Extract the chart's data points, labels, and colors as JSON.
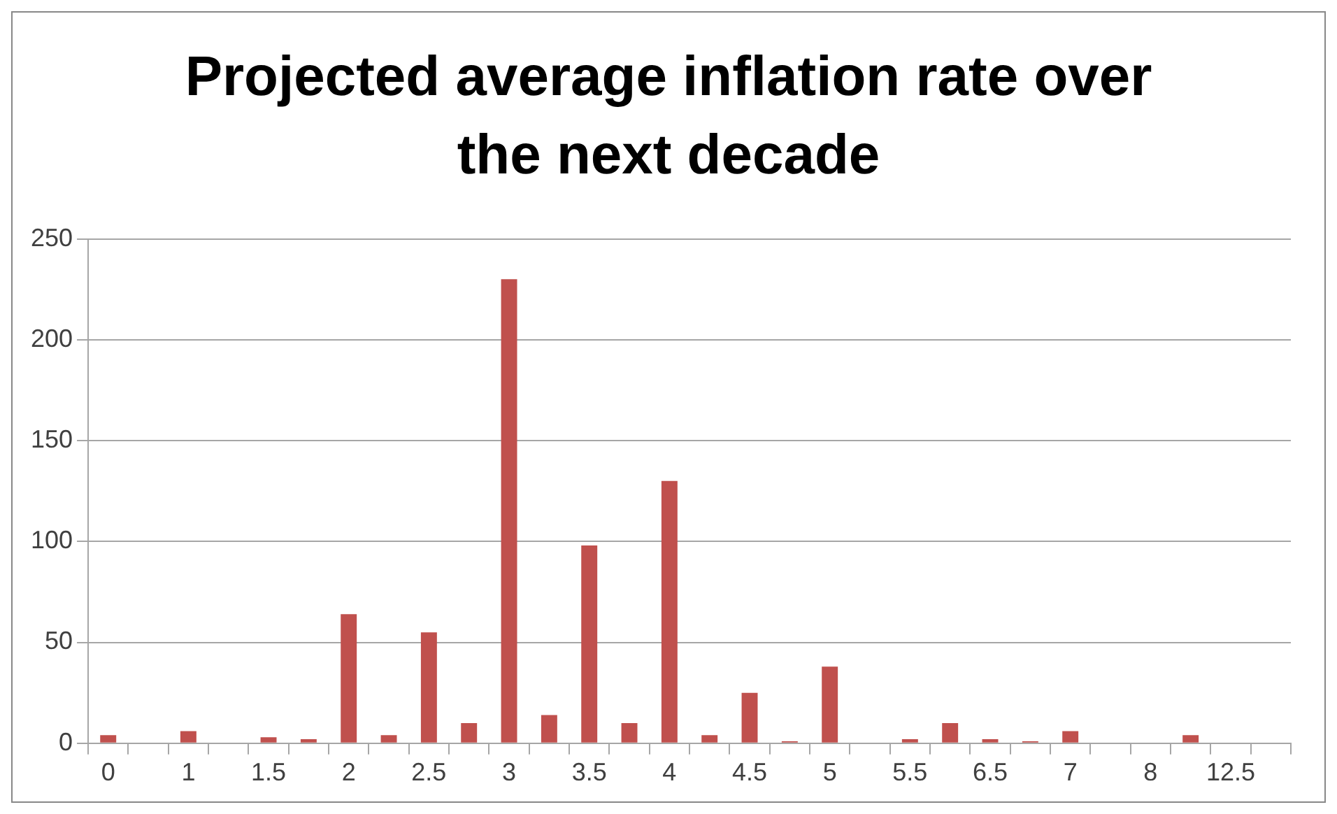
{
  "chart_data": {
    "type": "bar",
    "title": "Projected average inflation rate over the next decade",
    "categories": [
      "0",
      null,
      "1",
      null,
      "1.5",
      null,
      "2",
      null,
      "2.5",
      null,
      "3",
      null,
      "3.5",
      null,
      "4",
      null,
      "4.5",
      null,
      "5",
      null,
      "5.5",
      null,
      "6.5",
      null,
      "7",
      null,
      "8",
      null,
      "12.5",
      null
    ],
    "values": [
      4,
      0,
      6,
      0,
      3,
      2,
      64,
      4,
      55,
      10,
      230,
      14,
      98,
      10,
      130,
      4,
      25,
      1,
      38,
      0,
      2,
      10,
      2,
      1,
      6,
      0,
      0,
      4,
      0,
      0
    ],
    "color": "#c0504d",
    "ylim": [
      0,
      250
    ],
    "yticks": [
      0,
      50,
      100,
      150,
      200,
      250
    ],
    "grid": "y",
    "legend": false
  }
}
